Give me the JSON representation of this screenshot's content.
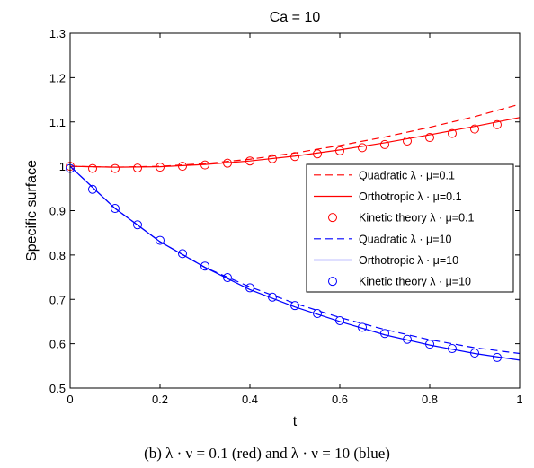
{
  "chart_data": {
    "type": "line",
    "title": "Ca = 10",
    "xlabel": "t",
    "ylabel": "Specific surface",
    "xlim": [
      0,
      1
    ],
    "ylim": [
      0.5,
      1.3
    ],
    "xticks": [
      "0",
      "0.2",
      "0.4",
      "0.6",
      "0.8",
      "1"
    ],
    "yticks": [
      "0.5",
      "0.6",
      "0.7",
      "0.8",
      "0.9",
      "1",
      "1.1",
      "1.2",
      "1.3"
    ],
    "grid": false,
    "legend_position": "center-right",
    "series": [
      {
        "name": "Quadratic λ · μ=0.1",
        "color": "#ff0000",
        "style": "dashed",
        "x": [
          0,
          0.1,
          0.2,
          0.3,
          0.4,
          0.5,
          0.6,
          0.7,
          0.8,
          0.9,
          1.0
        ],
        "y": [
          1.0,
          0.998,
          1.0,
          1.006,
          1.016,
          1.03,
          1.047,
          1.066,
          1.088,
          1.112,
          1.14
        ]
      },
      {
        "name": "Orthotropic λ · μ=0.1",
        "color": "#ff0000",
        "style": "solid",
        "x": [
          0,
          0.1,
          0.2,
          0.3,
          0.4,
          0.5,
          0.6,
          0.7,
          0.8,
          0.9,
          1.0
        ],
        "y": [
          1.0,
          0.998,
          0.999,
          1.004,
          1.012,
          1.023,
          1.037,
          1.053,
          1.071,
          1.09,
          1.11
        ]
      },
      {
        "name": "Kinetic theory λ · μ=0.1",
        "color": "#ff0000",
        "style": "markers",
        "x": [
          0,
          0.05,
          0.1,
          0.15,
          0.2,
          0.25,
          0.3,
          0.35,
          0.4,
          0.45,
          0.5,
          0.55,
          0.6,
          0.65,
          0.7,
          0.75,
          0.8,
          0.85,
          0.9,
          0.95
        ],
        "y": [
          1.0,
          0.995,
          0.995,
          0.996,
          0.998,
          1.0,
          1.003,
          1.007,
          1.012,
          1.017,
          1.022,
          1.028,
          1.035,
          1.042,
          1.049,
          1.057,
          1.065,
          1.074,
          1.084,
          1.094
        ]
      },
      {
        "name": "Quadratic λ · μ=10",
        "color": "#0000ff",
        "style": "dashed",
        "x": [
          0,
          0.1,
          0.2,
          0.3,
          0.4,
          0.5,
          0.6,
          0.7,
          0.8,
          0.9,
          1.0
        ],
        "y": [
          1.0,
          0.905,
          0.83,
          0.772,
          0.728,
          0.691,
          0.659,
          0.632,
          0.609,
          0.591,
          0.578
        ]
      },
      {
        "name": "Orthotropic λ · μ=10",
        "color": "#0000ff",
        "style": "solid",
        "x": [
          0,
          0.1,
          0.2,
          0.3,
          0.4,
          0.5,
          0.6,
          0.7,
          0.8,
          0.9,
          1.0
        ],
        "y": [
          1.0,
          0.905,
          0.83,
          0.772,
          0.722,
          0.683,
          0.65,
          0.62,
          0.597,
          0.578,
          0.563
        ]
      },
      {
        "name": "Kinetic theory λ · μ=10",
        "color": "#0000ff",
        "style": "markers",
        "x": [
          0,
          0.05,
          0.1,
          0.15,
          0.2,
          0.25,
          0.3,
          0.35,
          0.4,
          0.45,
          0.5,
          0.55,
          0.6,
          0.65,
          0.7,
          0.75,
          0.8,
          0.85,
          0.9,
          0.95
        ],
        "y": [
          0.995,
          0.948,
          0.905,
          0.868,
          0.833,
          0.803,
          0.775,
          0.749,
          0.726,
          0.705,
          0.686,
          0.668,
          0.652,
          0.637,
          0.623,
          0.61,
          0.599,
          0.589,
          0.579,
          0.569
        ]
      }
    ]
  },
  "caption": "(b) λ · ν = 0.1 (red) and λ · ν = 10 (blue)"
}
